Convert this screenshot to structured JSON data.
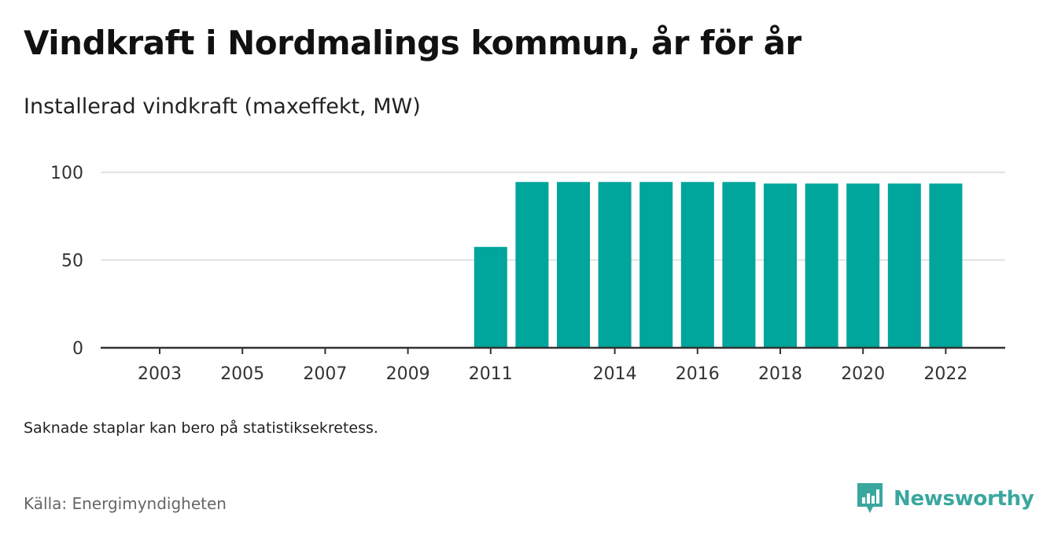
{
  "header": {
    "title": "Vindkraft i Nordmalings kommun, år för år",
    "subtitle": "Installerad vindkraft (maxeffekt, MW)"
  },
  "footer": {
    "note": "Saknade staplar kan bero på statistiksekretess.",
    "source": "Källa: Energimyndigheten",
    "brand": "Newsworthy"
  },
  "colors": {
    "bar": "#00a59b",
    "grid": "#d9d9d9",
    "axis": "#333333",
    "brand": "#3aa79e"
  },
  "chart_data": {
    "type": "bar",
    "categories": [
      2003,
      2004,
      2005,
      2006,
      2007,
      2008,
      2009,
      2010,
      2011,
      2012,
      2013,
      2014,
      2015,
      2016,
      2017,
      2018,
      2019,
      2020,
      2021,
      2022
    ],
    "values": [
      null,
      null,
      null,
      null,
      null,
      null,
      null,
      null,
      57.5,
      94.5,
      94.5,
      94.5,
      94.5,
      94.5,
      94.5,
      93.6,
      93.6,
      93.6,
      93.6,
      93.6
    ],
    "x_tick_labels": [
      "2003",
      "2005",
      "2007",
      "2009",
      "2011",
      "2014",
      "2016",
      "2018",
      "2020",
      "2022"
    ],
    "y_ticks": [
      0,
      50,
      100
    ],
    "ylim": [
      0,
      100
    ],
    "title": "Vindkraft i Nordmalings kommun, år för år",
    "subtitle": "Installerad vindkraft (maxeffekt, MW)",
    "grid": true
  }
}
